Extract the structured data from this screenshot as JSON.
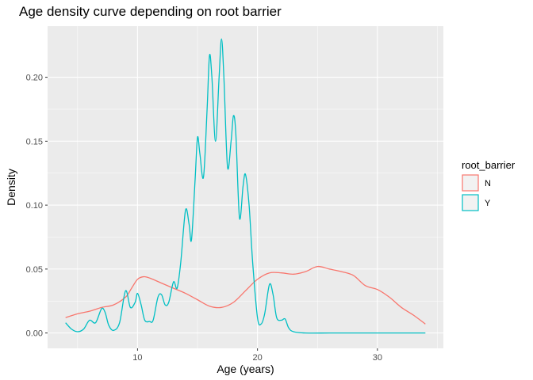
{
  "chart_data": {
    "type": "line",
    "title": "Age density curve depending on root barrier",
    "xlabel": "Age (years)",
    "ylabel": "Density",
    "xlim": [
      2.5,
      35.5
    ],
    "ylim": [
      -0.012,
      0.24
    ],
    "x_ticks": [
      10,
      20,
      30
    ],
    "x_tick_labels": [
      "10",
      "20",
      "30"
    ],
    "y_ticks": [
      0.0,
      0.05,
      0.1,
      0.15,
      0.2
    ],
    "y_tick_labels": [
      "0.00",
      "0.05",
      "0.10",
      "0.15",
      "0.20"
    ],
    "grid": true,
    "legend": {
      "title": "root_barrier",
      "placement": "right"
    },
    "series": [
      {
        "name": "N",
        "color": "#F8766D",
        "points": [
          [
            4,
            0.012
          ],
          [
            5,
            0.015
          ],
          [
            6,
            0.017
          ],
          [
            7,
            0.02
          ],
          [
            8,
            0.022
          ],
          [
            9,
            0.028
          ],
          [
            9.5,
            0.035
          ],
          [
            10,
            0.042
          ],
          [
            10.5,
            0.044
          ],
          [
            11,
            0.043
          ],
          [
            12,
            0.039
          ],
          [
            13,
            0.035
          ],
          [
            14,
            0.031
          ],
          [
            15,
            0.026
          ],
          [
            16,
            0.021
          ],
          [
            17,
            0.02
          ],
          [
            18,
            0.024
          ],
          [
            19,
            0.033
          ],
          [
            20,
            0.042
          ],
          [
            21,
            0.047
          ],
          [
            22,
            0.047
          ],
          [
            23,
            0.046
          ],
          [
            24,
            0.048
          ],
          [
            25,
            0.052
          ],
          [
            26,
            0.05
          ],
          [
            27,
            0.048
          ],
          [
            28,
            0.045
          ],
          [
            29,
            0.037
          ],
          [
            30,
            0.034
          ],
          [
            31,
            0.028
          ],
          [
            32,
            0.02
          ],
          [
            33,
            0.014
          ],
          [
            34,
            0.007
          ]
        ]
      },
      {
        "name": "Y",
        "color": "#00BFC4",
        "points": [
          [
            4,
            0.008
          ],
          [
            4.5,
            0.003
          ],
          [
            5,
            0.001
          ],
          [
            5.5,
            0.003
          ],
          [
            6,
            0.01
          ],
          [
            6.5,
            0.008
          ],
          [
            7,
            0.019
          ],
          [
            7.3,
            0.016
          ],
          [
            7.6,
            0.006
          ],
          [
            8,
            0.002
          ],
          [
            8.5,
            0.008
          ],
          [
            9,
            0.033
          ],
          [
            9.4,
            0.02
          ],
          [
            9.8,
            0.024
          ],
          [
            10,
            0.031
          ],
          [
            10.3,
            0.022
          ],
          [
            10.6,
            0.01
          ],
          [
            11,
            0.009
          ],
          [
            11.3,
            0.01
          ],
          [
            11.7,
            0.028
          ],
          [
            12,
            0.03
          ],
          [
            12.3,
            0.022
          ],
          [
            12.6,
            0.024
          ],
          [
            13,
            0.04
          ],
          [
            13.3,
            0.035
          ],
          [
            13.6,
            0.055
          ],
          [
            14,
            0.096
          ],
          [
            14.3,
            0.085
          ],
          [
            14.5,
            0.073
          ],
          [
            14.8,
            0.12
          ],
          [
            15,
            0.153
          ],
          [
            15.2,
            0.14
          ],
          [
            15.5,
            0.122
          ],
          [
            15.8,
            0.175
          ],
          [
            16,
            0.217
          ],
          [
            16.2,
            0.2
          ],
          [
            16.5,
            0.15
          ],
          [
            16.8,
            0.2
          ],
          [
            17,
            0.23
          ],
          [
            17.2,
            0.2
          ],
          [
            17.5,
            0.13
          ],
          [
            17.8,
            0.15
          ],
          [
            18,
            0.17
          ],
          [
            18.2,
            0.155
          ],
          [
            18.5,
            0.09
          ],
          [
            18.8,
            0.115
          ],
          [
            19,
            0.124
          ],
          [
            19.3,
            0.1
          ],
          [
            19.6,
            0.055
          ],
          [
            20,
            0.012
          ],
          [
            20.3,
            0.007
          ],
          [
            20.6,
            0.015
          ],
          [
            21,
            0.038
          ],
          [
            21.3,
            0.03
          ],
          [
            21.6,
            0.012
          ],
          [
            22,
            0.01
          ],
          [
            22.3,
            0.011
          ],
          [
            22.6,
            0.004
          ],
          [
            23,
            0.001
          ],
          [
            24,
            0.0
          ],
          [
            26,
            0.0
          ],
          [
            28,
            0.0
          ],
          [
            30,
            0.0
          ],
          [
            32,
            0.0
          ],
          [
            34,
            0.0
          ]
        ]
      }
    ]
  }
}
